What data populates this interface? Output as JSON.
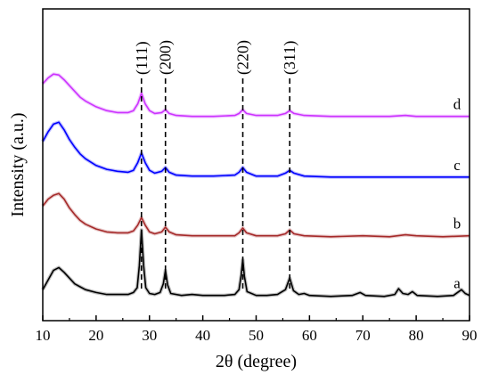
{
  "chart_data": {
    "type": "line",
    "xlabel": "2θ (degree)",
    "ylabel": "Intensity (a.u.)",
    "xlim": [
      10,
      90
    ],
    "xticks": [
      10,
      20,
      30,
      40,
      50,
      60,
      70,
      80,
      90
    ],
    "yticks_shown": false,
    "grid": false,
    "annotations": [
      {
        "label": "(111)",
        "x": 28.5
      },
      {
        "label": "(200)",
        "x": 33.0
      },
      {
        "label": "(220)",
        "x": 47.5
      },
      {
        "label": "(311)",
        "x": 56.3
      }
    ],
    "series": [
      {
        "name": "a",
        "color": "#000000",
        "offset": 0,
        "points": [
          [
            10,
            0.1
          ],
          [
            11,
            0.2
          ],
          [
            12,
            0.3
          ],
          [
            13,
            0.33
          ],
          [
            14,
            0.28
          ],
          [
            15,
            0.22
          ],
          [
            16,
            0.16
          ],
          [
            17,
            0.13
          ],
          [
            18,
            0.1
          ],
          [
            20,
            0.07
          ],
          [
            22,
            0.05
          ],
          [
            24,
            0.05
          ],
          [
            26,
            0.05
          ],
          [
            27,
            0.07
          ],
          [
            27.7,
            0.12
          ],
          [
            28.1,
            0.35
          ],
          [
            28.5,
            0.72
          ],
          [
            28.9,
            0.35
          ],
          [
            29.3,
            0.12
          ],
          [
            30,
            0.06
          ],
          [
            31,
            0.05
          ],
          [
            32,
            0.07
          ],
          [
            32.6,
            0.16
          ],
          [
            33.0,
            0.3
          ],
          [
            33.4,
            0.15
          ],
          [
            34,
            0.06
          ],
          [
            36,
            0.04
          ],
          [
            38,
            0.05
          ],
          [
            40,
            0.04
          ],
          [
            42,
            0.04
          ],
          [
            44,
            0.04
          ],
          [
            46,
            0.05
          ],
          [
            46.8,
            0.1
          ],
          [
            47.2,
            0.25
          ],
          [
            47.5,
            0.41
          ],
          [
            47.8,
            0.24
          ],
          [
            48.3,
            0.08
          ],
          [
            50,
            0.04
          ],
          [
            52,
            0.04
          ],
          [
            54,
            0.05
          ],
          [
            55.5,
            0.1
          ],
          [
            56.3,
            0.22
          ],
          [
            57,
            0.09
          ],
          [
            58,
            0.05
          ],
          [
            59,
            0.06
          ],
          [
            60,
            0.04
          ],
          [
            64,
            0.03
          ],
          [
            68,
            0.04
          ],
          [
            69.5,
            0.07
          ],
          [
            70.5,
            0.04
          ],
          [
            74,
            0.03
          ],
          [
            76,
            0.05
          ],
          [
            76.7,
            0.11
          ],
          [
            77.5,
            0.06
          ],
          [
            78.5,
            0.05
          ],
          [
            79.3,
            0.08
          ],
          [
            80.2,
            0.04
          ],
          [
            84,
            0.03
          ],
          [
            87,
            0.04
          ],
          [
            88.5,
            0.1
          ],
          [
            89.2,
            0.06
          ],
          [
            90,
            0.04
          ]
        ]
      },
      {
        "name": "b",
        "color": "#a52a2a",
        "offset": 1,
        "points": [
          [
            10,
            0.35
          ],
          [
            11,
            0.42
          ],
          [
            12,
            0.46
          ],
          [
            13,
            0.48
          ],
          [
            14,
            0.42
          ],
          [
            15,
            0.33
          ],
          [
            16,
            0.26
          ],
          [
            17,
            0.2
          ],
          [
            18,
            0.16
          ],
          [
            20,
            0.11
          ],
          [
            22,
            0.08
          ],
          [
            24,
            0.07
          ],
          [
            26,
            0.07
          ],
          [
            27,
            0.09
          ],
          [
            27.8,
            0.15
          ],
          [
            28.5,
            0.23
          ],
          [
            29.2,
            0.15
          ],
          [
            30,
            0.08
          ],
          [
            31,
            0.06
          ],
          [
            32.3,
            0.08
          ],
          [
            33.0,
            0.13
          ],
          [
            33.7,
            0.08
          ],
          [
            35,
            0.05
          ],
          [
            38,
            0.04
          ],
          [
            42,
            0.04
          ],
          [
            46,
            0.04
          ],
          [
            46.8,
            0.07
          ],
          [
            47.5,
            0.12
          ],
          [
            48.2,
            0.07
          ],
          [
            50,
            0.04
          ],
          [
            54,
            0.04
          ],
          [
            55.5,
            0.06
          ],
          [
            56.3,
            0.1
          ],
          [
            57.1,
            0.06
          ],
          [
            59,
            0.04
          ],
          [
            64,
            0.03
          ],
          [
            70,
            0.04
          ],
          [
            75,
            0.03
          ],
          [
            78,
            0.05
          ],
          [
            80,
            0.04
          ],
          [
            85,
            0.03
          ],
          [
            90,
            0.04
          ]
        ]
      },
      {
        "name": "c",
        "color": "#0000ff",
        "offset": 2,
        "points": [
          [
            10,
            0.4
          ],
          [
            11,
            0.5
          ],
          [
            12,
            0.58
          ],
          [
            13,
            0.6
          ],
          [
            14,
            0.52
          ],
          [
            15,
            0.42
          ],
          [
            16,
            0.34
          ],
          [
            17,
            0.27
          ],
          [
            18,
            0.22
          ],
          [
            20,
            0.15
          ],
          [
            22,
            0.11
          ],
          [
            24,
            0.09
          ],
          [
            26,
            0.08
          ],
          [
            27,
            0.1
          ],
          [
            27.8,
            0.18
          ],
          [
            28.5,
            0.28
          ],
          [
            29.2,
            0.18
          ],
          [
            30,
            0.1
          ],
          [
            31,
            0.07
          ],
          [
            32.3,
            0.09
          ],
          [
            33.0,
            0.13
          ],
          [
            33.7,
            0.08
          ],
          [
            35,
            0.05
          ],
          [
            38,
            0.04
          ],
          [
            42,
            0.04
          ],
          [
            46,
            0.05
          ],
          [
            46.8,
            0.08
          ],
          [
            47.5,
            0.13
          ],
          [
            48.2,
            0.08
          ],
          [
            50,
            0.04
          ],
          [
            54,
            0.04
          ],
          [
            55.5,
            0.07
          ],
          [
            56.3,
            0.1
          ],
          [
            57.1,
            0.07
          ],
          [
            59,
            0.04
          ],
          [
            64,
            0.03
          ],
          [
            70,
            0.03
          ],
          [
            75,
            0.03
          ],
          [
            80,
            0.03
          ],
          [
            85,
            0.03
          ],
          [
            90,
            0.03
          ]
        ]
      },
      {
        "name": "d",
        "color": "#cc33ff",
        "offset": 3,
        "points": [
          [
            10,
            0.38
          ],
          [
            11,
            0.44
          ],
          [
            12,
            0.48
          ],
          [
            13,
            0.47
          ],
          [
            14,
            0.42
          ],
          [
            15,
            0.36
          ],
          [
            16,
            0.3
          ],
          [
            17,
            0.24
          ],
          [
            18,
            0.2
          ],
          [
            20,
            0.14
          ],
          [
            22,
            0.1
          ],
          [
            24,
            0.08
          ],
          [
            26,
            0.08
          ],
          [
            27,
            0.1
          ],
          [
            27.8,
            0.17
          ],
          [
            28.5,
            0.28
          ],
          [
            29.2,
            0.17
          ],
          [
            30,
            0.1
          ],
          [
            31,
            0.07
          ],
          [
            32.3,
            0.08
          ],
          [
            33.0,
            0.11
          ],
          [
            33.7,
            0.07
          ],
          [
            35,
            0.05
          ],
          [
            38,
            0.04
          ],
          [
            42,
            0.04
          ],
          [
            46,
            0.05
          ],
          [
            46.8,
            0.07
          ],
          [
            47.5,
            0.11
          ],
          [
            48.2,
            0.07
          ],
          [
            50,
            0.05
          ],
          [
            54,
            0.05
          ],
          [
            55.5,
            0.07
          ],
          [
            56.3,
            0.1
          ],
          [
            57.1,
            0.07
          ],
          [
            59,
            0.05
          ],
          [
            64,
            0.04
          ],
          [
            70,
            0.04
          ],
          [
            75,
            0.04
          ],
          [
            78,
            0.05
          ],
          [
            80,
            0.04
          ],
          [
            85,
            0.04
          ],
          [
            90,
            0.04
          ]
        ]
      }
    ]
  }
}
